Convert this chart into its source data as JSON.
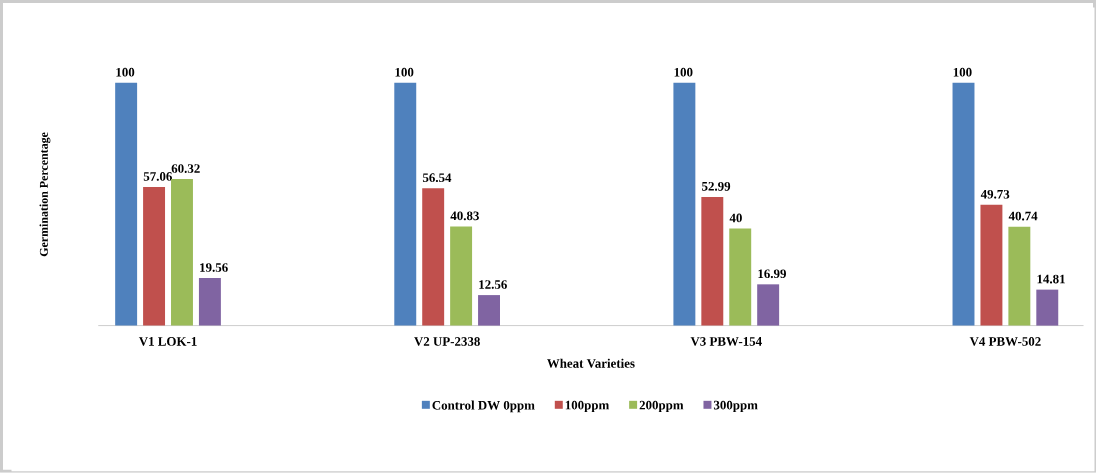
{
  "chart_data": {
    "type": "bar",
    "xlabel": "Wheat Varieties",
    "ylabel": "Germination Percentage",
    "categories": [
      "V1 LOK-1",
      "V2 UP-2338",
      "V3 PBW-154",
      "V4 PBW-502"
    ],
    "series": [
      {
        "name": "Control DW 0ppm",
        "color": "#4f81bd",
        "values": [
          100,
          100,
          100,
          100
        ]
      },
      {
        "name": "100ppm",
        "color": "#c0504d",
        "values": [
          57.06,
          56.54,
          52.99,
          49.73
        ]
      },
      {
        "name": "200ppm",
        "color": "#9bbb59",
        "values": [
          60.32,
          40.83,
          40,
          40.74
        ]
      },
      {
        "name": "300ppm",
        "color": "#8064a2",
        "values": [
          19.56,
          12.56,
          16.99,
          14.81
        ]
      }
    ],
    "data_labels": true,
    "legend": "bottom",
    "tick_labels": "x",
    "grid": false
  }
}
